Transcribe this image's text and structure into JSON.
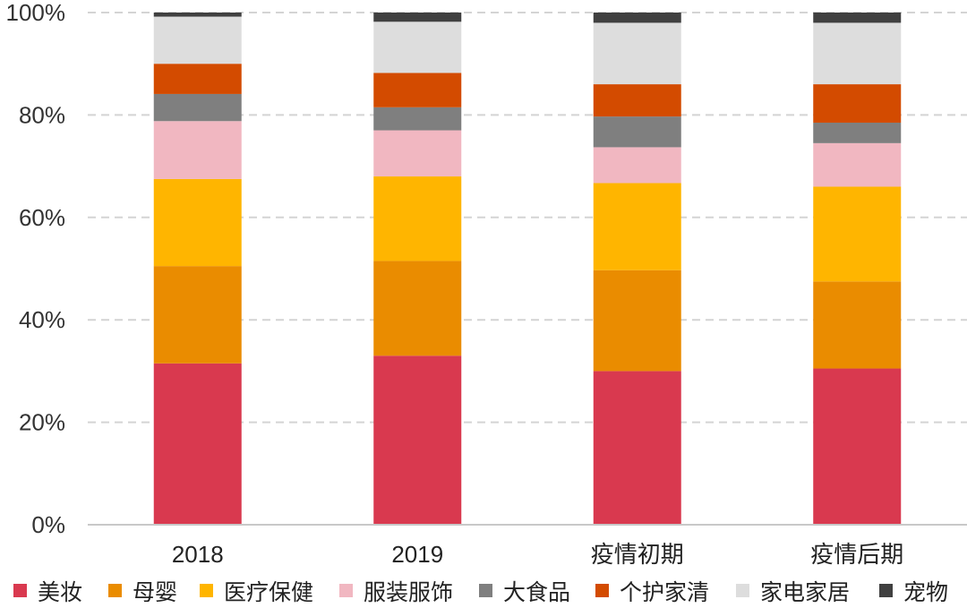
{
  "chart_data": {
    "type": "bar",
    "stacked": true,
    "percent": true,
    "categories": [
      "2018",
      "2019",
      "疫情初期",
      "疫情后期"
    ],
    "series": [
      {
        "name": "美妆",
        "color": "#D9394F",
        "values": [
          31.5,
          33.0,
          30.0,
          30.5
        ]
      },
      {
        "name": "母婴",
        "color": "#EA8C00",
        "values": [
          19.0,
          18.5,
          19.7,
          17.0
        ]
      },
      {
        "name": "医疗保健",
        "color": "#FFB500",
        "values": [
          17.0,
          16.5,
          17.0,
          18.5
        ]
      },
      {
        "name": "服装服饰",
        "color": "#F1B7C1",
        "values": [
          11.3,
          9.0,
          7.0,
          8.5
        ]
      },
      {
        "name": "大食品",
        "color": "#7F7F7F",
        "values": [
          5.3,
          4.5,
          6.0,
          4.0
        ]
      },
      {
        "name": "个护家清",
        "color": "#D34B00",
        "values": [
          5.9,
          6.7,
          6.3,
          7.5
        ]
      },
      {
        "name": "家电家居",
        "color": "#DDDDDD",
        "values": [
          9.2,
          10.0,
          12.0,
          12.0
        ]
      },
      {
        "name": "宠物",
        "color": "#404040",
        "values": [
          0.8,
          1.8,
          2.0,
          2.0
        ]
      }
    ],
    "yticks": [
      "0%",
      "20%",
      "40%",
      "60%",
      "80%",
      "100%"
    ],
    "ylim": [
      0,
      100
    ],
    "grid": true,
    "legend_position": "bottom"
  }
}
